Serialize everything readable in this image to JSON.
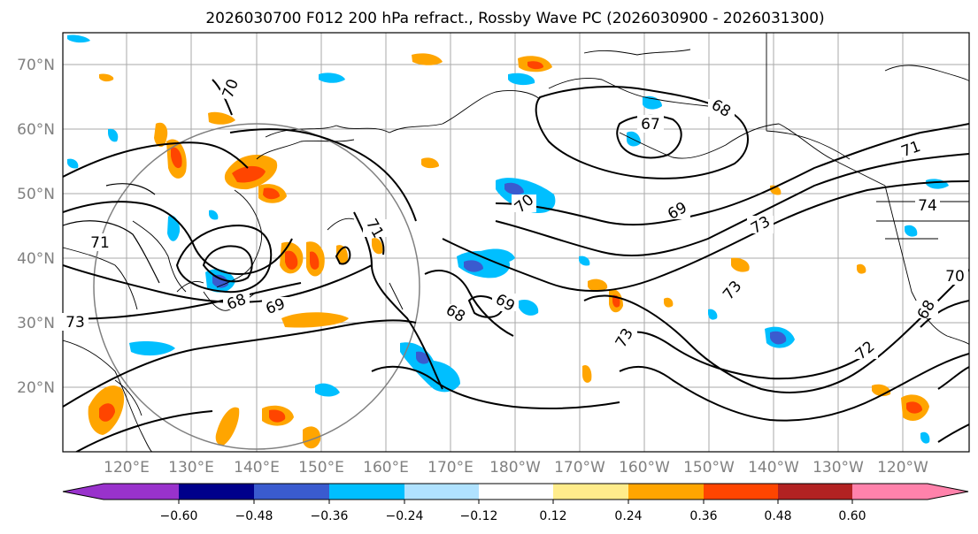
{
  "title": "2026030700 F012 200 hPa refract., Rossby Wave PC (2026030900 - 2026031300)",
  "lat_labels": [
    "70°N",
    "60°N",
    "50°N",
    "40°N",
    "30°N",
    "20°N"
  ],
  "lon_labels": [
    "120°E",
    "130°E",
    "140°E",
    "150°E",
    "160°E",
    "170°E",
    "180°W",
    "170°W",
    "160°W",
    "150°W",
    "140°W",
    "130°W",
    "120°W"
  ],
  "contour_labels": [
    "70",
    "71",
    "73",
    "68",
    "69",
    "71",
    "70",
    "68",
    "69",
    "67",
    "68",
    "69",
    "73",
    "73",
    "73",
    "72",
    "71",
    "70",
    "68",
    "74"
  ],
  "colorbar": {
    "colors": [
      "#9932cc",
      "#00008b",
      "#3a5bcf",
      "#00bfff",
      "#b0e2ff",
      "#ffffff",
      "#ffec8b",
      "#ffa500",
      "#ff4500",
      "#b22222",
      "#ff82ab"
    ],
    "tick_labels": [
      "−0.60",
      "−0.48",
      "−0.36",
      "−0.24",
      "−0.12",
      "0.12",
      "0.24",
      "0.36",
      "0.48",
      "0.60"
    ]
  }
}
